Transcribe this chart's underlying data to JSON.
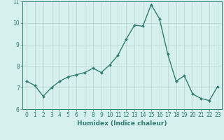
{
  "x": [
    0,
    1,
    2,
    3,
    4,
    5,
    6,
    7,
    8,
    9,
    10,
    11,
    12,
    13,
    14,
    15,
    16,
    17,
    18,
    19,
    20,
    21,
    22,
    23
  ],
  "y": [
    7.3,
    7.1,
    6.6,
    7.0,
    7.3,
    7.5,
    7.6,
    7.7,
    7.9,
    7.7,
    8.05,
    8.5,
    9.25,
    9.9,
    9.85,
    10.85,
    10.2,
    8.55,
    7.3,
    7.55,
    6.7,
    6.5,
    6.4,
    7.05
  ],
  "line_color": "#2e7d6e",
  "marker": "D",
  "marker_size": 2,
  "bg_color": "#d6f0ee",
  "grid_color": "#b8d4d0",
  "xlabel": "Humidex (Indice chaleur)",
  "ylim": [
    6,
    11
  ],
  "xlim": [
    -0.5,
    23.5
  ],
  "yticks": [
    6,
    7,
    8,
    9,
    10,
    11
  ],
  "xticks": [
    0,
    1,
    2,
    3,
    4,
    5,
    6,
    7,
    8,
    9,
    10,
    11,
    12,
    13,
    14,
    15,
    16,
    17,
    18,
    19,
    20,
    21,
    22,
    23
  ],
  "tick_fontsize": 5.5,
  "label_fontsize": 6.5,
  "axis_color": "#2e7d6e",
  "line_width": 1.0
}
